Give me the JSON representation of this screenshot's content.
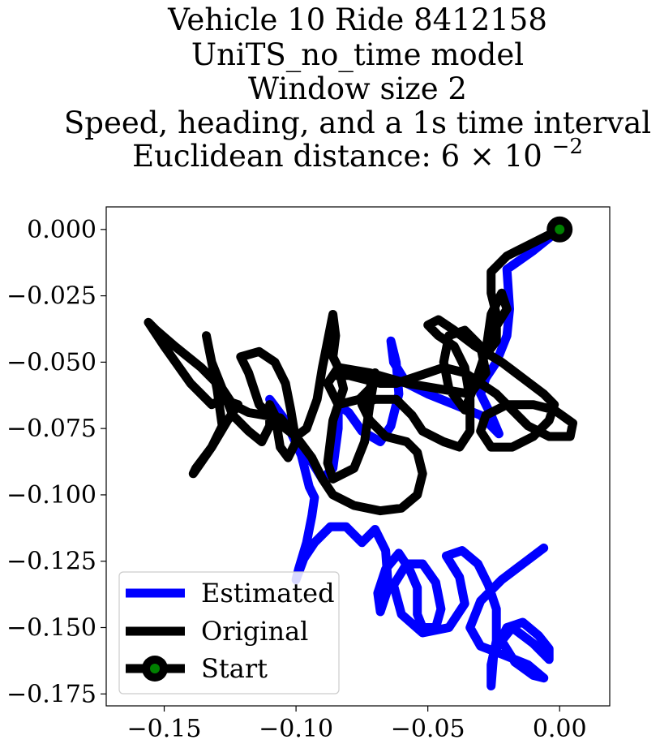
{
  "chart_data": {
    "type": "line",
    "title_lines": [
      "Vehicle 10 Ride 8412158",
      "UniTS_no_time model",
      "Window size 2",
      "Speed, heading, and a 1s time interval"
    ],
    "title_metric_prefix": "Euclidean distance: ",
    "title_metric_mantissa": "6",
    "title_metric_times": "×",
    "title_metric_base": "10",
    "title_metric_exponent": "−2",
    "xlabel": "",
    "ylabel": "",
    "xlim": [
      -0.172,
      0.019
    ],
    "ylim": [
      -0.1795,
      0.0085
    ],
    "xticks": [
      -0.15,
      -0.1,
      -0.05,
      0.0
    ],
    "xtick_labels": [
      "−0.15",
      "−0.10",
      "−0.05",
      "0.00"
    ],
    "yticks": [
      0.0,
      -0.025,
      -0.05,
      -0.075,
      -0.1,
      -0.125,
      -0.15,
      -0.175
    ],
    "ytick_labels": [
      "0.000",
      "−0.025",
      "−0.050",
      "−0.075",
      "−0.100",
      "−0.125",
      "−0.150",
      "−0.175"
    ],
    "grid": false,
    "legend_position": "lower-left",
    "series": [
      {
        "name": "Estimated",
        "color": "#0000ff",
        "points": [
          [
            0.0,
            0.0
          ],
          [
            -0.01,
            -0.008
          ],
          [
            -0.02,
            -0.015
          ],
          [
            -0.019,
            -0.03
          ],
          [
            -0.02,
            -0.04
          ],
          [
            -0.024,
            -0.05
          ],
          [
            -0.028,
            -0.056
          ],
          [
            -0.03,
            -0.062
          ],
          [
            -0.026,
            -0.07
          ],
          [
            -0.023,
            -0.077
          ],
          [
            -0.03,
            -0.07
          ],
          [
            -0.04,
            -0.066
          ],
          [
            -0.05,
            -0.062
          ],
          [
            -0.058,
            -0.058
          ],
          [
            -0.063,
            -0.05
          ],
          [
            -0.064,
            -0.042
          ],
          [
            -0.062,
            -0.05
          ],
          [
            -0.061,
            -0.062
          ],
          [
            -0.064,
            -0.074
          ],
          [
            -0.068,
            -0.08
          ],
          [
            -0.075,
            -0.076
          ],
          [
            -0.08,
            -0.069
          ],
          [
            -0.084,
            -0.066
          ],
          [
            -0.084,
            -0.075
          ],
          [
            -0.086,
            -0.09
          ],
          [
            -0.09,
            -0.094
          ],
          [
            -0.095,
            -0.086
          ],
          [
            -0.1,
            -0.078
          ],
          [
            -0.106,
            -0.072
          ],
          [
            -0.11,
            -0.064
          ],
          [
            -0.104,
            -0.072
          ],
          [
            -0.098,
            -0.085
          ],
          [
            -0.095,
            -0.097
          ],
          [
            -0.093,
            -0.101
          ],
          [
            -0.094,
            -0.108
          ],
          [
            -0.096,
            -0.118
          ],
          [
            -0.099,
            -0.128
          ],
          [
            -0.1,
            -0.132
          ],
          [
            -0.097,
            -0.124
          ],
          [
            -0.093,
            -0.118
          ],
          [
            -0.087,
            -0.112
          ],
          [
            -0.081,
            -0.112
          ],
          [
            -0.075,
            -0.118
          ],
          [
            -0.07,
            -0.113
          ],
          [
            -0.066,
            -0.121
          ],
          [
            -0.065,
            -0.135
          ],
          [
            -0.068,
            -0.144
          ],
          [
            -0.069,
            -0.137
          ],
          [
            -0.066,
            -0.128
          ],
          [
            -0.061,
            -0.122
          ],
          [
            -0.057,
            -0.128
          ],
          [
            -0.054,
            -0.135
          ],
          [
            -0.054,
            -0.145
          ],
          [
            -0.052,
            -0.15
          ],
          [
            -0.047,
            -0.15
          ],
          [
            -0.045,
            -0.143
          ],
          [
            -0.047,
            -0.133
          ],
          [
            -0.052,
            -0.126
          ],
          [
            -0.058,
            -0.126
          ],
          [
            -0.063,
            -0.134
          ],
          [
            -0.06,
            -0.145
          ],
          [
            -0.052,
            -0.152
          ],
          [
            -0.042,
            -0.15
          ],
          [
            -0.036,
            -0.141
          ],
          [
            -0.038,
            -0.131
          ],
          [
            -0.043,
            -0.123
          ],
          [
            -0.037,
            -0.121
          ],
          [
            -0.031,
            -0.126
          ],
          [
            -0.027,
            -0.134
          ],
          [
            -0.024,
            -0.143
          ],
          [
            -0.024,
            -0.155
          ],
          [
            -0.026,
            -0.164
          ],
          [
            -0.026,
            -0.172
          ],
          [
            -0.025,
            -0.16
          ],
          [
            -0.02,
            -0.15
          ],
          [
            -0.014,
            -0.148
          ],
          [
            -0.008,
            -0.153
          ],
          [
            -0.004,
            -0.158
          ],
          [
            -0.004,
            -0.162
          ],
          [
            -0.01,
            -0.156
          ],
          [
            -0.018,
            -0.15
          ],
          [
            -0.022,
            -0.155
          ],
          [
            -0.017,
            -0.163
          ],
          [
            -0.01,
            -0.168
          ],
          [
            -0.006,
            -0.169
          ],
          [
            -0.012,
            -0.164
          ],
          [
            -0.022,
            -0.16
          ],
          [
            -0.03,
            -0.157
          ],
          [
            -0.034,
            -0.15
          ],
          [
            -0.03,
            -0.14
          ],
          [
            -0.022,
            -0.132
          ],
          [
            -0.014,
            -0.126
          ],
          [
            -0.006,
            -0.12
          ]
        ]
      },
      {
        "name": "Original",
        "color": "#000000",
        "points": [
          [
            0.0,
            0.0
          ],
          [
            -0.01,
            -0.005
          ],
          [
            -0.02,
            -0.01
          ],
          [
            -0.026,
            -0.016
          ],
          [
            -0.026,
            -0.024
          ],
          [
            -0.024,
            -0.032
          ],
          [
            -0.024,
            -0.042
          ],
          [
            -0.027,
            -0.046
          ],
          [
            -0.025,
            -0.038
          ],
          [
            -0.02,
            -0.03
          ],
          [
            -0.022,
            -0.024
          ],
          [
            -0.026,
            -0.032
          ],
          [
            -0.028,
            -0.046
          ],
          [
            -0.032,
            -0.058
          ],
          [
            -0.036,
            -0.068
          ],
          [
            -0.042,
            -0.06
          ],
          [
            -0.044,
            -0.05
          ],
          [
            -0.042,
            -0.04
          ],
          [
            -0.036,
            -0.038
          ],
          [
            -0.03,
            -0.044
          ],
          [
            -0.028,
            -0.054
          ],
          [
            -0.034,
            -0.062
          ],
          [
            -0.046,
            -0.06
          ],
          [
            -0.058,
            -0.058
          ],
          [
            -0.072,
            -0.054
          ],
          [
            -0.084,
            -0.052
          ],
          [
            -0.088,
            -0.058
          ],
          [
            -0.084,
            -0.066
          ],
          [
            -0.076,
            -0.064
          ],
          [
            -0.072,
            -0.06
          ],
          [
            -0.07,
            -0.054
          ],
          [
            -0.072,
            -0.066
          ],
          [
            -0.074,
            -0.08
          ],
          [
            -0.078,
            -0.09
          ],
          [
            -0.086,
            -0.094
          ],
          [
            -0.088,
            -0.088
          ],
          [
            -0.086,
            -0.072
          ],
          [
            -0.082,
            -0.06
          ],
          [
            -0.084,
            -0.052
          ],
          [
            -0.086,
            -0.048
          ],
          [
            -0.085,
            -0.04
          ],
          [
            -0.086,
            -0.032
          ],
          [
            -0.088,
            -0.042
          ],
          [
            -0.09,
            -0.052
          ],
          [
            -0.092,
            -0.064
          ],
          [
            -0.096,
            -0.075
          ],
          [
            -0.1,
            -0.078
          ],
          [
            -0.108,
            -0.072
          ],
          [
            -0.114,
            -0.066
          ],
          [
            -0.118,
            -0.054
          ],
          [
            -0.121,
            -0.048
          ],
          [
            -0.114,
            -0.046
          ],
          [
            -0.108,
            -0.05
          ],
          [
            -0.104,
            -0.058
          ],
          [
            -0.102,
            -0.068
          ],
          [
            -0.1,
            -0.08
          ],
          [
            -0.103,
            -0.086
          ],
          [
            -0.106,
            -0.082
          ],
          [
            -0.108,
            -0.07
          ],
          [
            -0.11,
            -0.066
          ],
          [
            -0.11,
            -0.074
          ],
          [
            -0.113,
            -0.08
          ],
          [
            -0.118,
            -0.076
          ],
          [
            -0.124,
            -0.07
          ],
          [
            -0.128,
            -0.06
          ],
          [
            -0.132,
            -0.05
          ],
          [
            -0.134,
            -0.04
          ],
          [
            -0.13,
            -0.06
          ],
          [
            -0.128,
            -0.074
          ],
          [
            -0.132,
            -0.082
          ],
          [
            -0.138,
            -0.09
          ],
          [
            -0.139,
            -0.092
          ],
          [
            -0.132,
            -0.082
          ],
          [
            -0.126,
            -0.072
          ],
          [
            -0.122,
            -0.066
          ],
          [
            -0.128,
            -0.064
          ],
          [
            -0.132,
            -0.066
          ],
          [
            -0.14,
            -0.058
          ],
          [
            -0.15,
            -0.044
          ],
          [
            -0.156,
            -0.035
          ],
          [
            -0.153,
            -0.038
          ],
          [
            -0.146,
            -0.044
          ],
          [
            -0.136,
            -0.052
          ],
          [
            -0.128,
            -0.06
          ],
          [
            -0.124,
            -0.066
          ],
          [
            -0.118,
            -0.069
          ],
          [
            -0.112,
            -0.07
          ],
          [
            -0.106,
            -0.071
          ],
          [
            -0.1,
            -0.078
          ],
          [
            -0.094,
            -0.086
          ],
          [
            -0.09,
            -0.094
          ],
          [
            -0.086,
            -0.1
          ],
          [
            -0.078,
            -0.104
          ],
          [
            -0.068,
            -0.106
          ],
          [
            -0.06,
            -0.105
          ],
          [
            -0.054,
            -0.1
          ],
          [
            -0.052,
            -0.092
          ],
          [
            -0.054,
            -0.084
          ],
          [
            -0.058,
            -0.08
          ],
          [
            -0.066,
            -0.078
          ],
          [
            -0.072,
            -0.072
          ],
          [
            -0.075,
            -0.066
          ],
          [
            -0.07,
            -0.064
          ],
          [
            -0.062,
            -0.064
          ],
          [
            -0.056,
            -0.07
          ],
          [
            -0.052,
            -0.076
          ],
          [
            -0.044,
            -0.08
          ],
          [
            -0.038,
            -0.082
          ],
          [
            -0.034,
            -0.076
          ],
          [
            -0.034,
            -0.064
          ],
          [
            -0.036,
            -0.052
          ],
          [
            -0.04,
            -0.044
          ],
          [
            -0.046,
            -0.04
          ],
          [
            -0.05,
            -0.036
          ],
          [
            -0.046,
            -0.034
          ],
          [
            -0.04,
            -0.038
          ],
          [
            -0.032,
            -0.044
          ],
          [
            -0.022,
            -0.05
          ],
          [
            -0.014,
            -0.056
          ],
          [
            -0.006,
            -0.062
          ],
          [
            -0.002,
            -0.066
          ],
          [
            -0.004,
            -0.072
          ],
          [
            -0.01,
            -0.078
          ],
          [
            -0.018,
            -0.082
          ],
          [
            -0.026,
            -0.082
          ],
          [
            -0.03,
            -0.076
          ],
          [
            -0.028,
            -0.07
          ],
          [
            -0.02,
            -0.066
          ],
          [
            -0.01,
            -0.066
          ],
          [
            -0.002,
            -0.068
          ],
          [
            0.005,
            -0.073
          ],
          [
            0.004,
            -0.078
          ],
          [
            -0.004,
            -0.078
          ],
          [
            -0.012,
            -0.074
          ],
          [
            -0.018,
            -0.068
          ],
          [
            -0.024,
            -0.062
          ],
          [
            -0.03,
            -0.058
          ],
          [
            -0.036,
            -0.054
          ],
          [
            -0.044,
            -0.052
          ],
          [
            -0.05,
            -0.054
          ],
          [
            -0.056,
            -0.056
          ],
          [
            -0.062,
            -0.058
          ],
          [
            -0.068,
            -0.058
          ],
          [
            -0.08,
            -0.055
          ],
          [
            -0.086,
            -0.055
          ]
        ]
      }
    ],
    "start_point": {
      "name": "Start",
      "x": 0.0,
      "y": 0.0,
      "outer_color": "#000000",
      "inner_color": "#008000"
    }
  }
}
